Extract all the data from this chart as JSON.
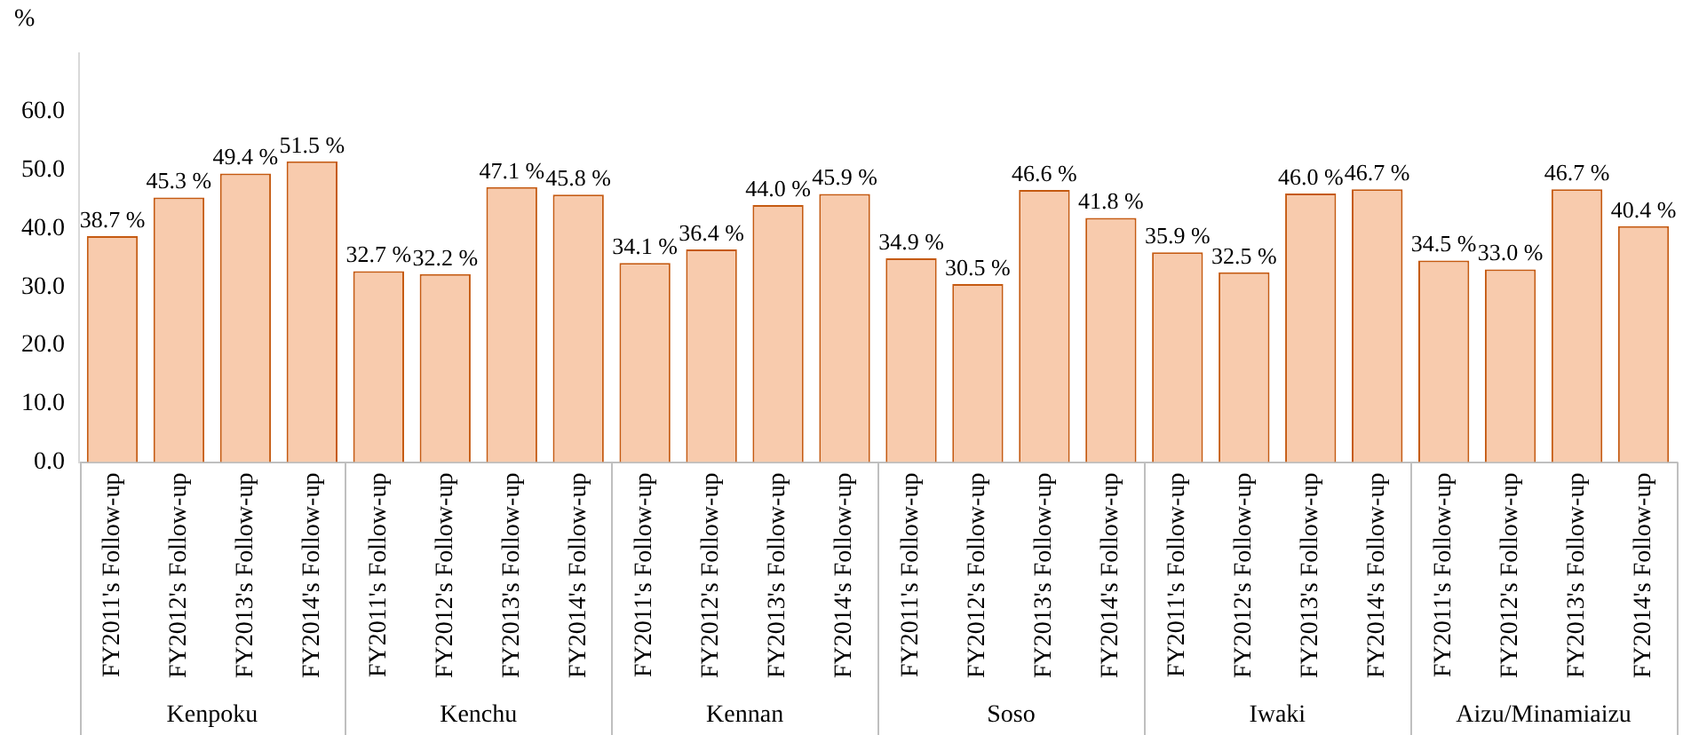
{
  "chart_data": {
    "type": "bar",
    "ylabel": "%",
    "categories": [
      "FY2011's Follow-up",
      "FY2012's Follow-up",
      "FY2013's Follow-up",
      "FY2014's Follow-up",
      "FY2011's Follow-up",
      "FY2012's Follow-up",
      "FY2013's Follow-up",
      "FY2014's Follow-up",
      "FY2011's Follow-up",
      "FY2012's Follow-up",
      "FY2013's Follow-up",
      "FY2014's Follow-up",
      "FY2011's Follow-up",
      "FY2012's Follow-up",
      "FY2013's Follow-up",
      "FY2014's Follow-up",
      "FY2011's Follow-up",
      "FY2012's Follow-up",
      "FY2013's Follow-up",
      "FY2014's Follow-up",
      "FY2011's Follow-up",
      "FY2012's Follow-up",
      "FY2013's Follow-up",
      "FY2014's Follow-up"
    ],
    "values": [
      38.7,
      45.3,
      49.4,
      51.5,
      32.7,
      32.2,
      47.1,
      45.8,
      34.1,
      36.4,
      44.0,
      45.9,
      34.9,
      30.5,
      46.6,
      41.8,
      35.9,
      32.5,
      46.0,
      46.7,
      34.5,
      33.0,
      46.7,
      40.4
    ],
    "value_labels": [
      "38.7 %",
      "45.3 %",
      "49.4 %",
      "51.5 %",
      "32.7 %",
      "32.2 %",
      "47.1 %",
      "45.8 %",
      "34.1 %",
      "36.4 %",
      "44.0 %",
      "45.9 %",
      "34.9 %",
      "30.5 %",
      "46.6 %",
      "41.8 %",
      "35.9 %",
      "32.5 %",
      "46.0 %",
      "46.7 %",
      "34.5 %",
      "33.0 %",
      "46.7 %",
      "40.4 %"
    ],
    "annotations": [
      "Kenpoku",
      "Kenchu",
      "Kennan",
      "Soso",
      "Iwaki",
      "Aizu/Minamiaizu"
    ],
    "color": "#f8cbad",
    "ylim": [
      0,
      70
    ],
    "yticks": [
      {
        "value": 0,
        "label": "0.0"
      },
      {
        "value": 10,
        "label": "10.0"
      },
      {
        "value": 20,
        "label": "20.0"
      },
      {
        "value": 30,
        "label": "30.0"
      },
      {
        "value": 40,
        "label": "40.0"
      },
      {
        "value": 50,
        "label": "50.0"
      },
      {
        "value": 60,
        "label": "60.0"
      }
    ],
    "legend": false
  }
}
